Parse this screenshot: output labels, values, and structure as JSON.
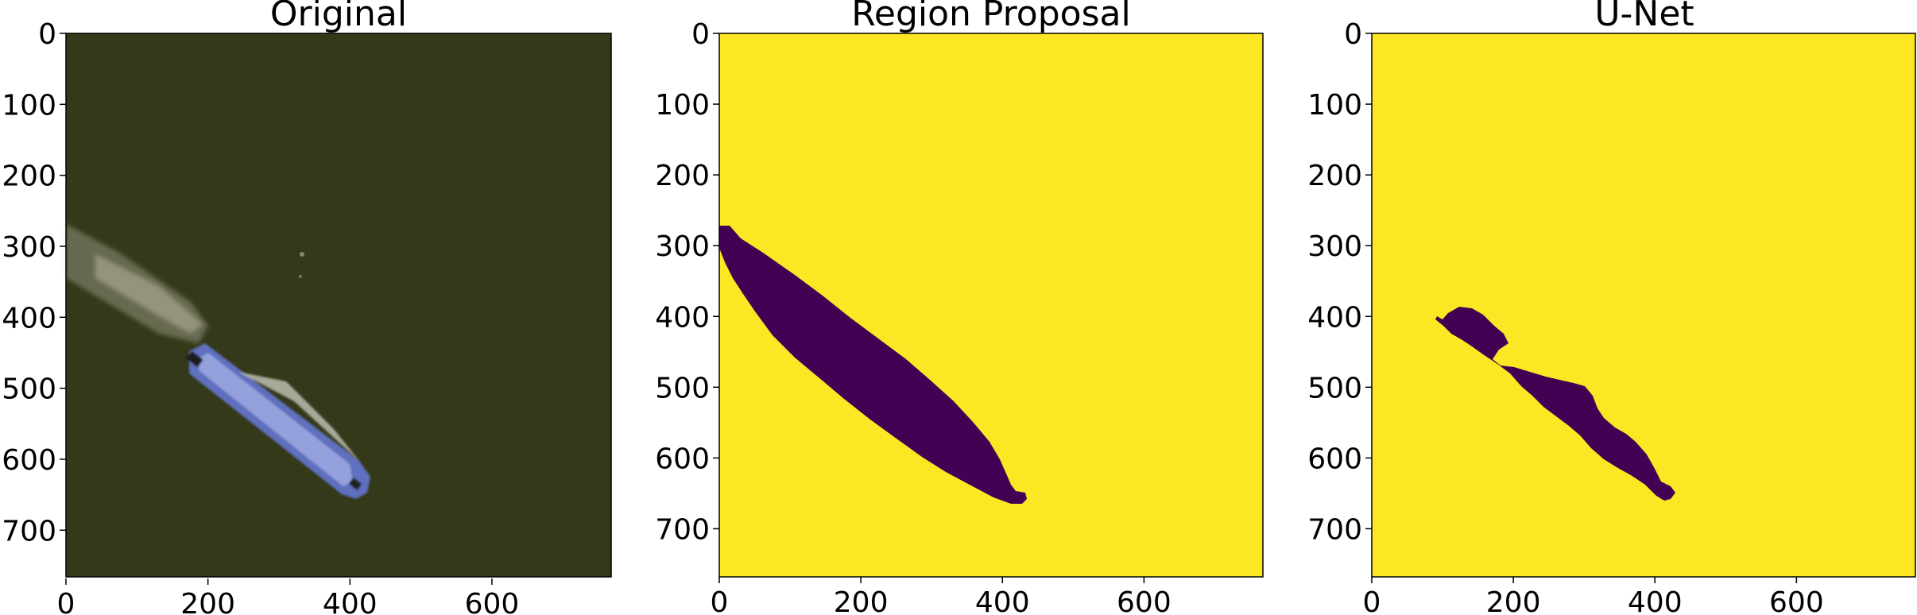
{
  "panels": [
    {
      "title": "Original",
      "kind": "satellite-image",
      "x_ticks": [
        "0",
        "200",
        "400",
        "600"
      ],
      "y_ticks": [
        "0",
        "100",
        "200",
        "300",
        "400",
        "500",
        "600",
        "700"
      ],
      "colors": {
        "water": "#34391a",
        "hull": "#5f6fbe",
        "deck": "#9aa6e0",
        "wake": "#c9c6b4"
      }
    },
    {
      "title": "Region Proposal",
      "kind": "segmentation-mask",
      "x_ticks": [
        "0",
        "200",
        "400",
        "600"
      ],
      "y_ticks": [
        "0",
        "100",
        "200",
        "300",
        "400",
        "500",
        "600",
        "700"
      ],
      "colors": {
        "background": "#fde725",
        "mask": "#440154"
      }
    },
    {
      "title": "U-Net",
      "kind": "segmentation-mask",
      "x_ticks": [
        "0",
        "200",
        "400",
        "600"
      ],
      "y_ticks": [
        "0",
        "100",
        "200",
        "300",
        "400",
        "500",
        "600",
        "700"
      ],
      "colors": {
        "background": "#fde725",
        "mask": "#440154"
      }
    }
  ]
}
